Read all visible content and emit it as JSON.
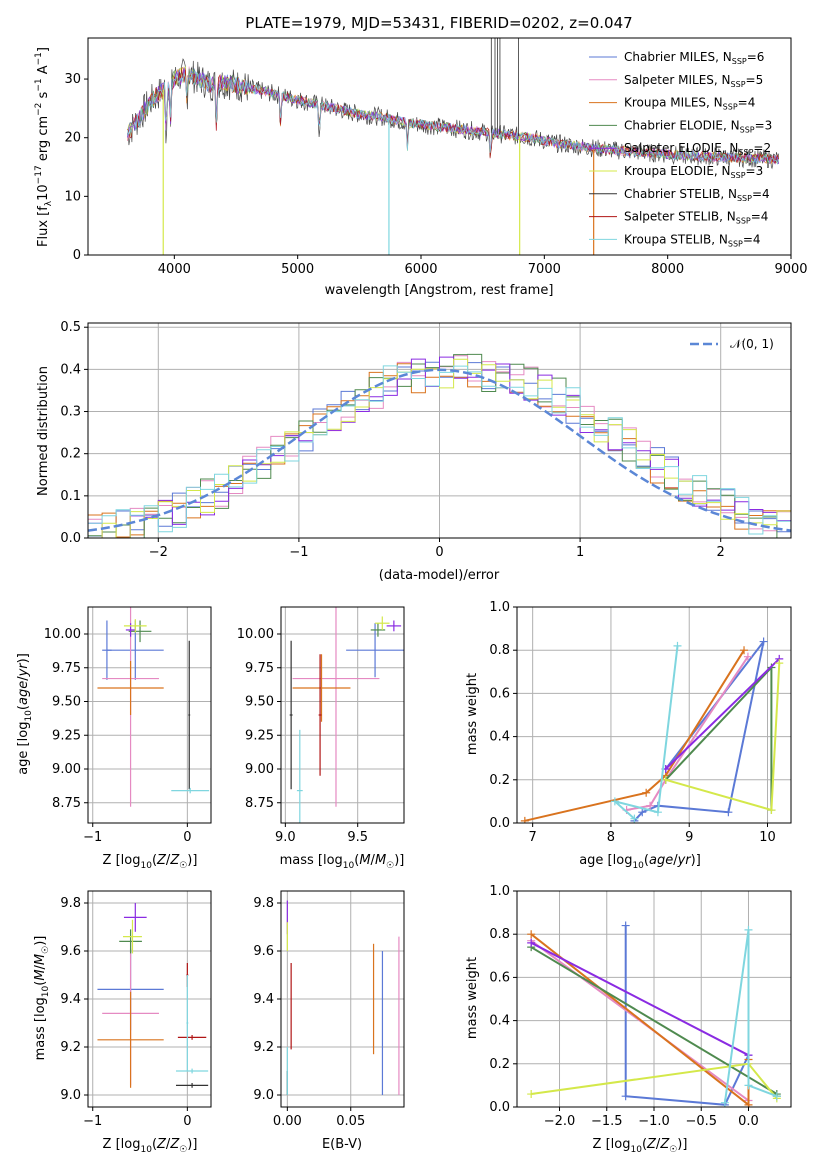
{
  "colors": {
    "chabrier_miles": "#5b79d6",
    "salpeter_miles": "#e58ac2",
    "kroupa_miles": "#d9731e",
    "chabrier_elodie": "#4f8a4f",
    "salpeter_elodie": "#8a2be2",
    "kroupa_elodie": "#d4e84a",
    "chabrier_stelib": "#333333",
    "salpeter_stelib": "#b01515",
    "kroupa_stelib": "#7fd6df",
    "normal_curve": "#5b87d6",
    "grid": "#b0b0b0"
  },
  "chart_data": [
    {
      "type": "line",
      "title": "PLATE=1979, MJD=53431, FIBERID=0202, z=0.047",
      "xlabel": "wavelength [Angstrom, rest frame]",
      "ylabel": "Flux [f_λ 10^-17 erg cm^-2 s^-1 A^-1]",
      "xlim": [
        3300,
        9000
      ],
      "ylim": [
        0,
        37
      ],
      "xticks": [
        "4000",
        "5000",
        "6000",
        "7000",
        "8000",
        "9000"
      ],
      "yticks": [
        "0",
        "10",
        "20",
        "30"
      ],
      "grid": false,
      "legend_position": "top-right",
      "legend": [
        {
          "label": "Chabrier MILES, N",
          "sub": "SSP",
          "suffix": "=6",
          "color_key": "chabrier_miles"
        },
        {
          "label": "Salpeter MILES, N",
          "sub": "SSP",
          "suffix": "=5",
          "color_key": "salpeter_miles"
        },
        {
          "label": "Kroupa MILES, N",
          "sub": "SSP",
          "suffix": "=4",
          "color_key": "kroupa_miles"
        },
        {
          "label": "Chabrier ELODIE, N",
          "sub": "SSP",
          "suffix": "=3",
          "color_key": "chabrier_elodie"
        },
        {
          "label": "Salpeter ELODIE, N",
          "sub": "SSP",
          "suffix": "=2",
          "color_key": "salpeter_elodie"
        },
        {
          "label": "Kroupa ELODIE, N",
          "sub": "SSP",
          "suffix": "=3",
          "color_key": "kroupa_elodie"
        },
        {
          "label": "Chabrier STELIB, N",
          "sub": "SSP",
          "suffix": "=4",
          "color_key": "chabrier_stelib"
        },
        {
          "label": "Salpeter STELIB, N",
          "sub": "SSP",
          "suffix": "=4",
          "color_key": "salpeter_stelib"
        },
        {
          "label": "Kroupa STELIB, N",
          "sub": "SSP",
          "suffix": "=4",
          "color_key": "kroupa_stelib"
        }
      ],
      "continuum": [
        [
          3600,
          20
        ],
        [
          3700,
          23
        ],
        [
          3800,
          26
        ],
        [
          3900,
          28
        ],
        [
          4000,
          30
        ],
        [
          4100,
          31
        ],
        [
          4200,
          30
        ],
        [
          4300,
          29
        ],
        [
          4400,
          29.5
        ],
        [
          4500,
          29
        ],
        [
          4700,
          28
        ],
        [
          4900,
          27
        ],
        [
          5100,
          26
        ],
        [
          5300,
          25
        ],
        [
          5500,
          24
        ],
        [
          5700,
          23.5
        ],
        [
          5900,
          22.5
        ],
        [
          6100,
          22
        ],
        [
          6300,
          21.5
        ],
        [
          6500,
          21
        ],
        [
          6700,
          20.5
        ],
        [
          6900,
          20
        ],
        [
          7100,
          19
        ],
        [
          7300,
          18.5
        ],
        [
          7500,
          18
        ],
        [
          7800,
          17.5
        ],
        [
          8100,
          17
        ],
        [
          8400,
          16.7
        ],
        [
          8700,
          16.5
        ],
        [
          8900,
          16.3
        ]
      ],
      "absorptions": [
        [
          3934,
          9
        ],
        [
          3969,
          7
        ],
        [
          4102,
          5
        ],
        [
          4340,
          7
        ],
        [
          4861,
          5
        ],
        [
          5175,
          5
        ],
        [
          5890,
          4
        ],
        [
          6563,
          5
        ]
      ],
      "spikes": [
        [
          6570,
          37
        ],
        [
          6600,
          37
        ],
        [
          6620,
          37
        ],
        [
          6640,
          37
        ],
        [
          6790,
          37
        ]
      ],
      "drops_to_zero": [
        [
          3910,
          "kroupa_elodie"
        ],
        [
          5740,
          "kroupa_stelib"
        ],
        [
          6800,
          "kroupa_elodie"
        ],
        [
          7400,
          "kroupa_miles"
        ]
      ]
    },
    {
      "type": "line",
      "xlabel": "(data-model)/error",
      "ylabel": "Normed distribution",
      "xlim": [
        -2.5,
        2.5
      ],
      "ylim": [
        0,
        0.51
      ],
      "xticks": [
        "−2",
        "−1",
        "0",
        "1",
        "2"
      ],
      "yticks": [
        "0.0",
        "0.1",
        "0.2",
        "0.3",
        "0.4",
        "0.5"
      ],
      "grid": true,
      "legend_position": "top-right",
      "legend": [
        {
          "label": "𝒩(0, 1)",
          "color_key": "normal_curve"
        }
      ],
      "series_mean": [
        0.02,
        0.02,
        0.025,
        0.03,
        0.04,
        0.05,
        0.065,
        0.08,
        0.095,
        0.11,
        0.13,
        0.155,
        0.175,
        0.2,
        0.225,
        0.25,
        0.27,
        0.295,
        0.315,
        0.335,
        0.35,
        0.365,
        0.375,
        0.385,
        0.39,
        0.395,
        0.398,
        0.396,
        0.39,
        0.385,
        0.375,
        0.365,
        0.35,
        0.335,
        0.315,
        0.295,
        0.27,
        0.25,
        0.225,
        0.2,
        0.175,
        0.155,
        0.13,
        0.11,
        0.095,
        0.08,
        0.065,
        0.05,
        0.04,
        0.03
      ],
      "histogram_series": [
        "chabrier_miles",
        "salpeter_miles",
        "kroupa_miles",
        "chabrier_elodie",
        "salpeter_elodie",
        "kroupa_elodie",
        "kroupa_stelib"
      ]
    },
    {
      "type": "scatter",
      "xlabel": "Z [log10(Z/Z☉)]",
      "ylabel": "age [log10(age/yr)]",
      "xlim": [
        -1.05,
        0.25
      ],
      "ylim": [
        8.6,
        10.2
      ],
      "xticks": [
        "−1",
        "0"
      ],
      "xtick_values": [
        -1,
        0
      ],
      "yticks": [
        "8.75",
        "9.00",
        "9.25",
        "9.50",
        "9.75",
        "10.00"
      ],
      "ytick_values": [
        8.75,
        9.0,
        9.25,
        9.5,
        9.75,
        10.0
      ],
      "grid": true,
      "points": [
        {
          "c": "chabrier_miles",
          "x": -0.55,
          "y": 9.88,
          "xe": 0.3,
          "ye": 0.22
        },
        {
          "c": "chabrier_miles",
          "x": -0.85,
          "y": 9.88,
          "xe": 0.05,
          "ye": 0.22
        },
        {
          "c": "salpeter_miles",
          "x": -0.6,
          "y": 9.67,
          "xe": 0.3,
          "ye": 0.95
        },
        {
          "c": "kroupa_miles",
          "x": -0.6,
          "y": 9.6,
          "xe": 0.35,
          "ye": 0.2
        },
        {
          "c": "chabrier_elodie",
          "x": -0.5,
          "y": 10.02,
          "xe": 0.12,
          "ye": 0.08
        },
        {
          "c": "salpeter_elodie",
          "x": -0.6,
          "y": 10.03,
          "xe": 0.05,
          "ye": 0.05
        },
        {
          "c": "kroupa_elodie",
          "x": -0.55,
          "y": 10.06,
          "xe": 0.12,
          "ye": 0.05
        },
        {
          "c": "chabrier_stelib",
          "x": 0.02,
          "y": 9.4,
          "xe": 0.01,
          "ye": 0.55
        },
        {
          "c": "kroupa_stelib",
          "x": 0.03,
          "y": 8.84,
          "xe": 0.2,
          "ye": 0.02
        }
      ]
    },
    {
      "type": "scatter",
      "xlabel": "mass [log10(M/M☉)]",
      "xlim": [
        8.97,
        9.82
      ],
      "ylim": [
        8.6,
        10.2
      ],
      "xticks": [
        "9.0",
        "9.5"
      ],
      "xtick_values": [
        9.0,
        9.5
      ],
      "yticks": [
        "8.75",
        "9.00",
        "9.25",
        "9.50",
        "9.75",
        "10.00"
      ],
      "ytick_values": [
        8.75,
        9.0,
        9.25,
        9.5,
        9.75,
        10.0
      ],
      "grid": true,
      "points": [
        {
          "c": "chabrier_miles",
          "x": 9.62,
          "y": 9.88,
          "xe": 0.2,
          "ye": 0.2
        },
        {
          "c": "salpeter_miles",
          "x": 9.35,
          "y": 9.67,
          "xe": 0.3,
          "ye": 0.95
        },
        {
          "c": "kroupa_miles",
          "x": 9.25,
          "y": 9.6,
          "xe": 0.2,
          "ye": 0.25
        },
        {
          "c": "chabrier_elodie",
          "x": 9.64,
          "y": 10.03,
          "xe": 0.05,
          "ye": 0.05
        },
        {
          "c": "salpeter_elodie",
          "x": 9.75,
          "y": 10.06,
          "xe": 0.05,
          "ye": 0.04
        },
        {
          "c": "kroupa_elodie",
          "x": 9.67,
          "y": 10.08,
          "xe": 0.05,
          "ye": 0.05
        },
        {
          "c": "chabrier_stelib",
          "x": 9.04,
          "y": 9.4,
          "xe": 0.01,
          "ye": 0.55
        },
        {
          "c": "salpeter_stelib",
          "x": 9.24,
          "y": 9.4,
          "xe": 0.01,
          "ye": 0.45
        },
        {
          "c": "kroupa_stelib",
          "x": 9.1,
          "y": 8.84,
          "xe": 0.02,
          "ye": 0.45
        }
      ]
    },
    {
      "type": "line",
      "xlabel": "age [log10(age/yr)]",
      "ylabel": "mass weight",
      "xlim": [
        6.8,
        10.3
      ],
      "ylim": [
        0,
        1
      ],
      "xticks": [
        "7",
        "8",
        "9",
        "10"
      ],
      "xtick_values": [
        7,
        8,
        9,
        10
      ],
      "yticks": [
        "0.0",
        "0.2",
        "0.4",
        "0.6",
        "0.8",
        "1.0"
      ],
      "ytick_values": [
        0,
        0.2,
        0.4,
        0.6,
        0.8,
        1.0
      ],
      "grid": true,
      "series": [
        {
          "c": "chabrier_miles",
          "pts": [
            [
              8.3,
              0.01
            ],
            [
              8.4,
              0.05
            ],
            [
              8.6,
              0.08
            ],
            [
              9.5,
              0.05
            ],
            [
              9.95,
              0.84
            ],
            [
              8.7,
              0.25
            ]
          ]
        },
        {
          "c": "salpeter_miles",
          "pts": [
            [
              8.2,
              0.06
            ],
            [
              8.5,
              0.08
            ],
            [
              8.7,
              0.2
            ],
            [
              9.75,
              0.77
            ]
          ]
        },
        {
          "c": "kroupa_miles",
          "pts": [
            [
              6.9,
              0.01
            ],
            [
              8.45,
              0.14
            ],
            [
              8.7,
              0.22
            ],
            [
              9.7,
              0.8
            ]
          ]
        },
        {
          "c": "chabrier_elodie",
          "pts": [
            [
              8.7,
              0.2
            ],
            [
              10.05,
              0.72
            ],
            [
              10.05,
              0.06
            ]
          ]
        },
        {
          "c": "salpeter_elodie",
          "pts": [
            [
              8.7,
              0.25
            ],
            [
              10.15,
              0.76
            ]
          ]
        },
        {
          "c": "kroupa_elodie",
          "pts": [
            [
              8.7,
              0.2
            ],
            [
              10.05,
              0.06
            ],
            [
              10.15,
              0.74
            ]
          ]
        },
        {
          "c": "kroupa_stelib",
          "pts": [
            [
              8.3,
              0.02
            ],
            [
              8.05,
              0.1
            ],
            [
              8.6,
              0.05
            ],
            [
              8.85,
              0.82
            ]
          ]
        }
      ]
    },
    {
      "type": "scatter",
      "xlabel": "Z [log10(Z/Z☉)]",
      "ylabel": "mass [log10(M/M☉)]",
      "xlim": [
        -1.05,
        0.25
      ],
      "ylim": [
        8.95,
        9.85
      ],
      "xticks": [
        "−1",
        "0"
      ],
      "xtick_values": [
        -1,
        0
      ],
      "yticks": [
        "9.0",
        "9.2",
        "9.4",
        "9.6",
        "9.8"
      ],
      "ytick_values": [
        9.0,
        9.2,
        9.4,
        9.6,
        9.8
      ],
      "grid": true,
      "points": [
        {
          "c": "chabrier_miles",
          "x": -0.6,
          "y": 9.44,
          "xe": 0.35,
          "ye": 0.17
        },
        {
          "c": "salpeter_miles",
          "x": -0.6,
          "y": 9.34,
          "xe": 0.3,
          "ye": 0.3
        },
        {
          "c": "kroupa_miles",
          "x": -0.6,
          "y": 9.23,
          "xe": 0.35,
          "ye": 0.2
        },
        {
          "c": "chabrier_elodie",
          "x": -0.6,
          "y": 9.64,
          "xe": 0.12,
          "ye": 0.05
        },
        {
          "c": "salpeter_elodie",
          "x": -0.55,
          "y": 9.74,
          "xe": 0.12,
          "ye": 0.06
        },
        {
          "c": "kroupa_elodie",
          "x": -0.58,
          "y": 9.66,
          "xe": 0.1,
          "ye": 0.07
        },
        {
          "c": "chabrier_stelib",
          "x": 0.05,
          "y": 9.04,
          "xe": 0.17,
          "ye": 0.01
        },
        {
          "c": "salpeter_stelib",
          "x": 0.05,
          "y": 9.24,
          "xe": 0.15,
          "ye": 0.01
        },
        {
          "c": "salpeter_stelib",
          "x": 0.0,
          "y": 9.5,
          "xe": 0.01,
          "ye": 0.05
        },
        {
          "c": "kroupa_stelib",
          "x": 0.05,
          "y": 9.1,
          "xe": 0.17,
          "ye": 0.01
        },
        {
          "c": "kroupa_stelib",
          "x": 0.0,
          "y": 9.3,
          "xe": 0.01,
          "ye": 0.2
        }
      ]
    },
    {
      "type": "scatter",
      "xlabel": "E(B-V)",
      "xlim": [
        -0.005,
        0.092
      ],
      "ylim": [
        8.95,
        9.85
      ],
      "xticks": [
        "0.00",
        "0.05"
      ],
      "xtick_values": [
        0.0,
        0.05
      ],
      "yticks": [
        "9.0",
        "9.2",
        "9.4",
        "9.6",
        "9.8"
      ],
      "ytick_values": [
        9.0,
        9.2,
        9.4,
        9.6,
        9.8
      ],
      "grid": true,
      "points": [
        {
          "c": "chabrier_miles",
          "x": 0.075,
          "y": 9.3,
          "xe": 0.0,
          "ye": 0.3
        },
        {
          "c": "salpeter_miles",
          "x": 0.088,
          "y": 9.33,
          "xe": 0.0,
          "ye": 0.33
        },
        {
          "c": "kroupa_miles",
          "x": 0.068,
          "y": 9.4,
          "xe": 0.0,
          "ye": 0.23
        },
        {
          "c": "salpeter_elodie",
          "x": 0.0,
          "y": 9.74,
          "xe": 0.0,
          "ye": 0.07
        },
        {
          "c": "kroupa_elodie",
          "x": 0.0,
          "y": 9.66,
          "xe": 0.0,
          "ye": 0.06
        },
        {
          "c": "salpeter_stelib",
          "x": 0.003,
          "y": 9.37,
          "xe": 0.0,
          "ye": 0.18
        },
        {
          "c": "chabrier_stelib",
          "x": 0.0,
          "y": 9.05,
          "xe": 0.0,
          "ye": 0.05
        },
        {
          "c": "kroupa_stelib",
          "x": 0.0,
          "y": 9.1,
          "xe": 0.0,
          "ye": 0.1
        }
      ]
    },
    {
      "type": "line",
      "xlabel": "Z [log10(Z/Z☉)]",
      "ylabel": "mass weight",
      "xlim": [
        -2.45,
        0.45
      ],
      "ylim": [
        0,
        1
      ],
      "xticks": [
        "−2.0",
        "−1.5",
        "−1.0",
        "−0.5",
        "0.0"
      ],
      "xtick_values": [
        -2.0,
        -1.5,
        -1.0,
        -0.5,
        0.0
      ],
      "yticks": [
        "0.0",
        "0.2",
        "0.4",
        "0.6",
        "0.8",
        "1.0"
      ],
      "ytick_values": [
        0,
        0.2,
        0.4,
        0.6,
        0.8,
        1.0
      ],
      "grid": true,
      "series": [
        {
          "c": "chabrier_miles",
          "pts": [
            [
              -1.3,
              0.84
            ],
            [
              -1.3,
              0.05
            ],
            [
              -0.25,
              0.01
            ],
            [
              0.0,
              0.24
            ]
          ]
        },
        {
          "c": "salpeter_miles",
          "pts": [
            [
              -2.3,
              0.77
            ],
            [
              0.0,
              0.03
            ],
            [
              0.0,
              0.2
            ]
          ]
        },
        {
          "c": "kroupa_miles",
          "pts": [
            [
              -2.3,
              0.8
            ],
            [
              0.0,
              0.01
            ],
            [
              0.0,
              0.22
            ]
          ]
        },
        {
          "c": "chabrier_elodie",
          "pts": [
            [
              -2.3,
              0.74
            ],
            [
              0.3,
              0.06
            ],
            [
              0.3,
              0.05
            ]
          ]
        },
        {
          "c": "salpeter_elodie",
          "pts": [
            [
              -2.3,
              0.76
            ],
            [
              0.0,
              0.24
            ]
          ]
        },
        {
          "c": "kroupa_elodie",
          "pts": [
            [
              -2.3,
              0.06
            ],
            [
              0.0,
              0.2
            ],
            [
              0.3,
              0.04
            ]
          ]
        },
        {
          "c": "kroupa_stelib",
          "pts": [
            [
              -0.25,
              0.02
            ],
            [
              0.0,
              0.82
            ],
            [
              0.0,
              0.1
            ],
            [
              0.3,
              0.05
            ]
          ]
        }
      ]
    }
  ]
}
